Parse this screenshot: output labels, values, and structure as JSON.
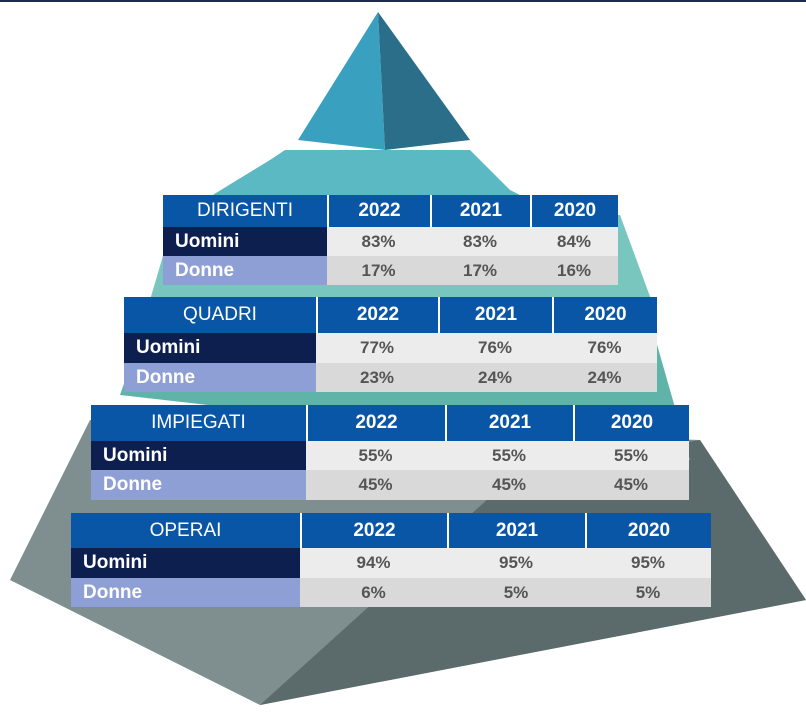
{
  "tables": [
    {
      "title": "DIRIGENTI",
      "years": [
        "2022",
        "2021",
        "2020"
      ],
      "rows": [
        {
          "label": "Uomini",
          "values": [
            "83%",
            "83%",
            "84%"
          ]
        },
        {
          "label": "Donne",
          "values": [
            "17%",
            "17%",
            "16%"
          ]
        }
      ]
    },
    {
      "title": "QUADRI",
      "years": [
        "2022",
        "2021",
        "2020"
      ],
      "rows": [
        {
          "label": "Uomini",
          "values": [
            "77%",
            "76%",
            "76%"
          ]
        },
        {
          "label": "Donne",
          "values": [
            "23%",
            "24%",
            "24%"
          ]
        }
      ]
    },
    {
      "title": "IMPIEGATI",
      "years": [
        "2022",
        "2021",
        "2020"
      ],
      "rows": [
        {
          "label": "Uomini",
          "values": [
            "55%",
            "55%",
            "55%"
          ]
        },
        {
          "label": "Donne",
          "values": [
            "45%",
            "45%",
            "45%"
          ]
        }
      ]
    },
    {
      "title": "OPERAI",
      "years": [
        "2022",
        "2021",
        "2020"
      ],
      "rows": [
        {
          "label": "Uomini",
          "values": [
            "94%",
            "95%",
            "95%"
          ]
        },
        {
          "label": "Donne",
          "values": [
            "6%",
            "5%",
            "5%"
          ]
        }
      ]
    }
  ]
}
